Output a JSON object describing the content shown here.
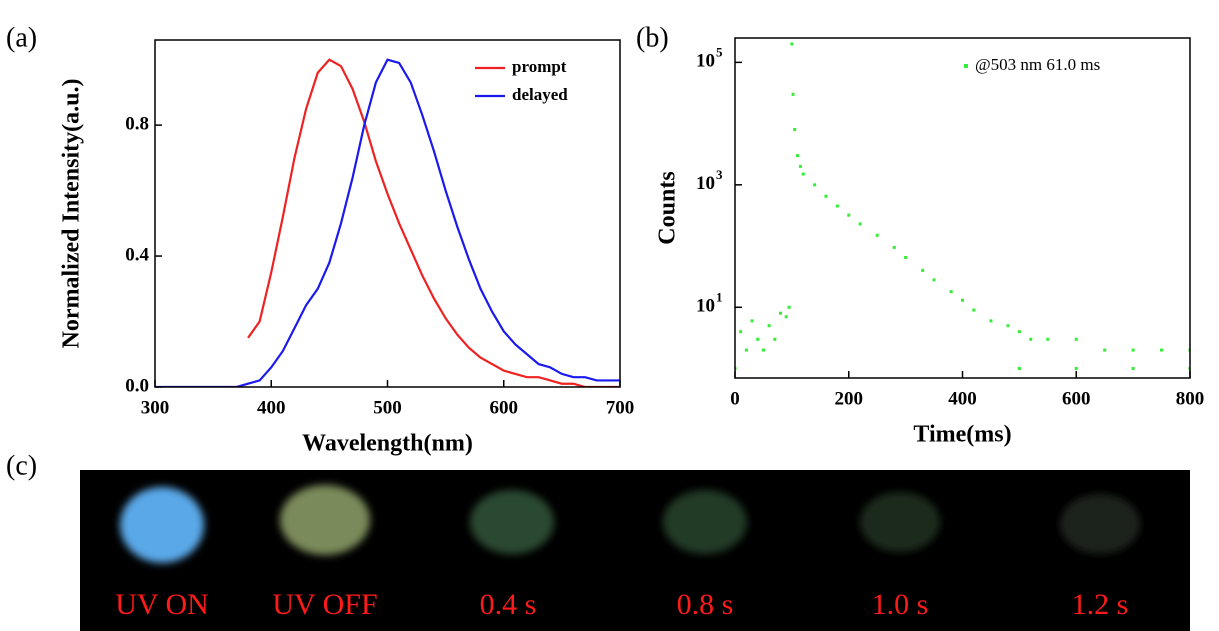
{
  "chart_data": [
    {
      "type": "line",
      "panel": "(a)",
      "x_label": "Wavelength(nm)",
      "y_label": "Normalized Intensity(a.u.)",
      "xlim": [
        300,
        700
      ],
      "xticks": [
        300,
        400,
        500,
        600,
        700
      ],
      "ylim": [
        0,
        1.06
      ],
      "yticks": [
        {
          "value": 0,
          "label": "0.0"
        },
        0.4,
        0.8
      ],
      "legend": "upper right",
      "series": [
        {
          "name": "prompt",
          "color": "#ee2222",
          "x": [
            380,
            390,
            400,
            410,
            420,
            430,
            440,
            450,
            460,
            470,
            480,
            490,
            500,
            510,
            520,
            530,
            540,
            550,
            560,
            570,
            580,
            590,
            600,
            610,
            620,
            630,
            640,
            650,
            660,
            670,
            680,
            690,
            700
          ],
          "values": [
            0.15,
            0.2,
            0.35,
            0.52,
            0.7,
            0.85,
            0.96,
            1.0,
            0.98,
            0.91,
            0.81,
            0.69,
            0.59,
            0.5,
            0.42,
            0.34,
            0.27,
            0.21,
            0.16,
            0.12,
            0.09,
            0.07,
            0.05,
            0.04,
            0.03,
            0.03,
            0.02,
            0.01,
            0.01,
            0,
            0,
            0,
            0
          ]
        },
        {
          "name": "delayed",
          "color": "#1a1aee",
          "x": [
            300,
            310,
            320,
            330,
            340,
            350,
            360,
            370,
            380,
            390,
            400,
            410,
            420,
            430,
            440,
            450,
            460,
            470,
            480,
            490,
            500,
            510,
            520,
            530,
            540,
            550,
            560,
            570,
            580,
            590,
            600,
            610,
            620,
            630,
            640,
            650,
            660,
            670,
            680,
            690,
            700
          ],
          "values": [
            0,
            0,
            0,
            0,
            0,
            0,
            0,
            0,
            0.01,
            0.02,
            0.06,
            0.11,
            0.18,
            0.25,
            0.3,
            0.38,
            0.5,
            0.64,
            0.8,
            0.93,
            1.0,
            0.99,
            0.93,
            0.83,
            0.72,
            0.6,
            0.49,
            0.39,
            0.3,
            0.23,
            0.17,
            0.13,
            0.1,
            0.07,
            0.06,
            0.04,
            0.03,
            0.03,
            0.02,
            0.02,
            0.02
          ]
        }
      ]
    },
    {
      "type": "scatter",
      "panel": "(b)",
      "x_label": "Time(ms)",
      "y_label": "Counts",
      "log_y": true,
      "xlim": [
        0,
        800
      ],
      "xticks": [
        0,
        200,
        400,
        600,
        800
      ],
      "ylim": [
        0.7,
        250000
      ],
      "yticks": [
        {
          "value": 10,
          "label": "10",
          "sup": "1"
        },
        {
          "value": 1000,
          "label": "10",
          "sup": "3"
        },
        {
          "value": 100000,
          "label": "10",
          "sup": "5"
        }
      ],
      "legend": "upper right",
      "series": [
        {
          "name": "@503 nm  61.0 ms",
          "color": "#33ee33",
          "x": [
            0,
            20,
            40,
            60,
            80,
            95,
            10,
            30,
            50,
            70,
            90,
            100,
            102,
            105,
            110,
            115,
            120,
            140,
            160,
            180,
            200,
            220,
            250,
            280,
            300,
            330,
            350,
            380,
            400,
            420,
            450,
            480,
            500,
            520,
            550,
            600,
            650,
            700,
            750,
            800,
            500,
            600,
            700,
            800
          ],
          "values": [
            1,
            2,
            3,
            5,
            8,
            10,
            4,
            6,
            2,
            3,
            7,
            200000,
            30000,
            8000,
            3000,
            2000,
            1500,
            1000,
            650,
            450,
            320,
            230,
            150,
            95,
            65,
            40,
            28,
            18,
            13,
            9,
            6,
            5,
            4,
            3,
            3,
            3,
            2,
            2,
            2,
            2,
            1,
            1,
            1,
            1
          ]
        }
      ]
    }
  ],
  "photo_strip": {
    "panel": "(c)",
    "captions": [
      "UV ON",
      "UV OFF",
      "0.4 s",
      "0.8 s",
      "1.0 s",
      "1.2 s"
    ]
  }
}
